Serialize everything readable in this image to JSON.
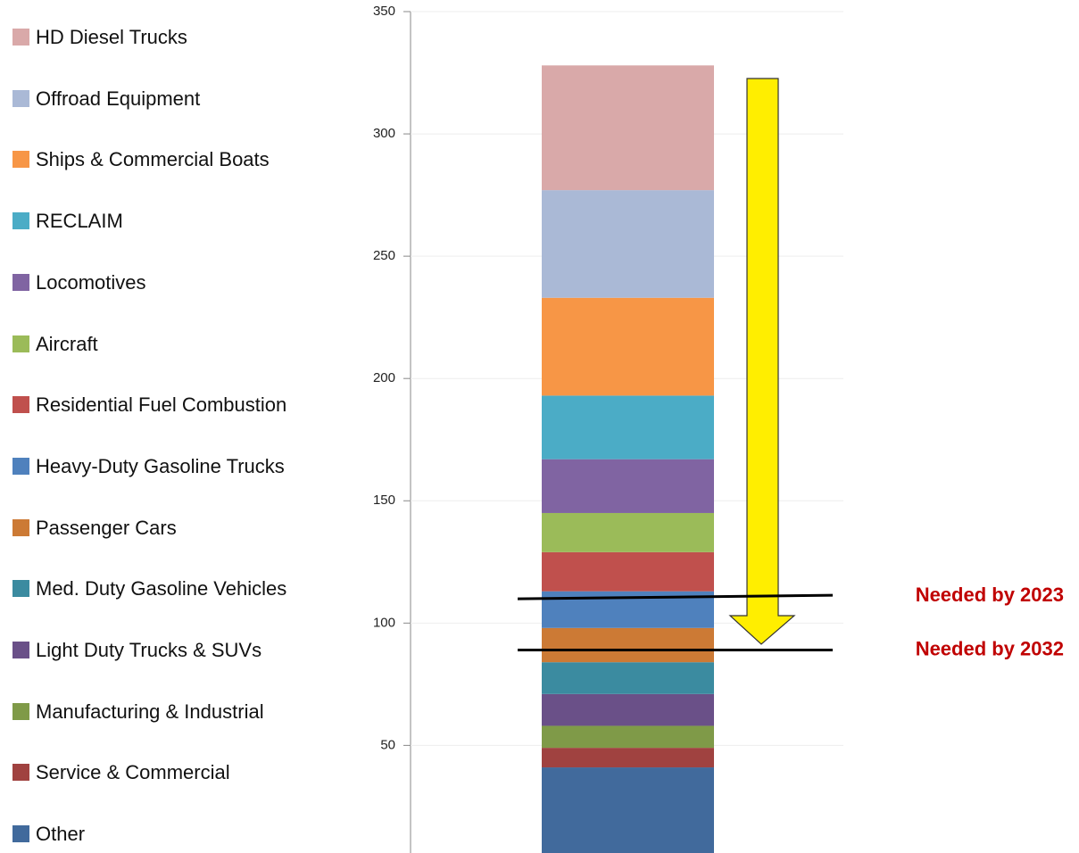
{
  "chart_data": {
    "type": "stacked_bar",
    "categories": [
      null
    ],
    "series": [
      {
        "name": "Other",
        "color": "#416a9c",
        "values": [
          35
        ]
      },
      {
        "name": "Service & Commercial",
        "color": "#a04240",
        "values": [
          8
        ]
      },
      {
        "name": "Manufacturing & Industrial",
        "color": "#7f9a48",
        "values": [
          9
        ]
      },
      {
        "name": "Light Duty Trucks & SUVs",
        "color": "#6a5088",
        "values": [
          13
        ]
      },
      {
        "name": "Med. Duty Gasoline Vehicles",
        "color": "#3b8ba0",
        "values": [
          13
        ]
      },
      {
        "name": "Passenger Cars",
        "color": "#cc7a35",
        "values": [
          14
        ]
      },
      {
        "name": "Heavy-Duty Gasoline Trucks",
        "color": "#4f81bd",
        "values": [
          15
        ]
      },
      {
        "name": "Residential Fuel Combustion",
        "color": "#c0504d",
        "values": [
          16
        ]
      },
      {
        "name": "Aircraft",
        "color": "#9bbb59",
        "values": [
          16
        ]
      },
      {
        "name": "Locomotives",
        "color": "#8064a2",
        "values": [
          22
        ]
      },
      {
        "name": "RECLAIM",
        "color": "#4bacc6",
        "values": [
          26
        ]
      },
      {
        "name": "Ships & Commercial Boats",
        "color": "#f79646",
        "values": [
          40
        ]
      },
      {
        "name": "Offroad Equipment",
        "color": "#aab9d6",
        "values": [
          44
        ]
      },
      {
        "name": "HD Diesel Trucks",
        "color": "#d9a9a9",
        "values": [
          51
        ]
      }
    ],
    "ylim": [
      6,
      350
    ],
    "yticks": [
      50,
      100,
      150,
      200,
      250,
      300,
      350
    ],
    "grid": true,
    "legend": "left",
    "annotations": [
      {
        "text": "Needed by 2023",
        "value": 111,
        "color": "#c00000"
      },
      {
        "text": "Needed by 2032",
        "value": 89,
        "color": "#c00000"
      }
    ]
  }
}
